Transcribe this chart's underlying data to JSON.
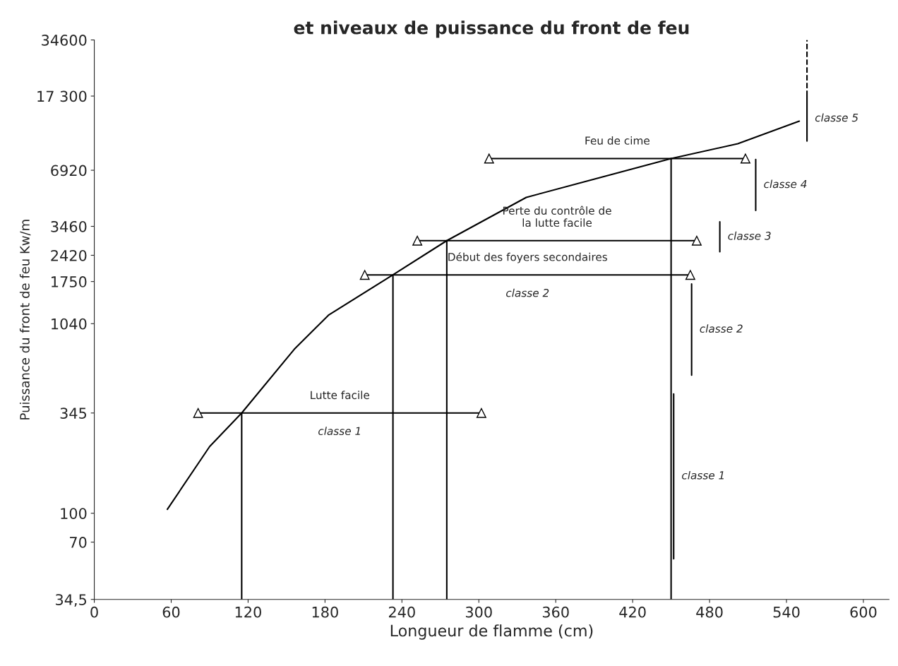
{
  "chart_data": {
    "type": "line",
    "title": "et niveaux de puissance du front de feu",
    "xlabel": "Longueur de flamme (cm)",
    "ylabel": "Puissance du front de feu Kw/m",
    "log": "y",
    "grid": false,
    "legend": false,
    "xlim": [
      0,
      620
    ],
    "xticks": [
      0,
      60,
      120,
      180,
      240,
      300,
      360,
      420,
      480,
      540,
      600
    ],
    "ylim": [
      34.5,
      34600
    ],
    "yticks": [
      {
        "value": 34.5,
        "label": "34,5"
      },
      70,
      100,
      345,
      1040,
      1750,
      2420,
      3460,
      6920,
      {
        "value": 17300,
        "label": "17 300"
      },
      34600
    ],
    "series": [
      {
        "color": "#000000",
        "x": [
          57,
          90,
          115,
          156,
          183,
          233,
          275,
          337,
          450,
          502,
          550
        ],
        "values": [
          105,
          228,
          345,
          758,
          1160,
          1900,
          2900,
          4950,
          8000,
          9600,
          12700
        ]
      },
      {
        "color": "#000000",
        "x": [
          81,
          302
        ],
        "values": [
          345,
          345
        ],
        "marker": "triangle"
      },
      {
        "color": "#000000",
        "x": [
          211,
          465
        ],
        "values": [
          1900,
          1900
        ],
        "marker": "triangle"
      },
      {
        "color": "#000000",
        "x": [
          252,
          470
        ],
        "values": [
          2900,
          2900
        ],
        "marker": "triangle"
      },
      {
        "color": "#000000",
        "x": [
          308,
          508
        ],
        "values": [
          8000,
          8000
        ],
        "marker": "triangle"
      },
      {
        "color": "#000000",
        "x": [
          115,
          115
        ],
        "values": [
          34.5,
          345
        ]
      },
      {
        "color": "#000000",
        "x": [
          233,
          233
        ],
        "values": [
          34.5,
          1900
        ]
      },
      {
        "color": "#000000",
        "x": [
          275,
          275
        ],
        "values": [
          34.5,
          2900
        ]
      },
      {
        "color": "#000000",
        "x": [
          450,
          450
        ],
        "values": [
          34.5,
          8000
        ]
      },
      {
        "color": "#000000",
        "x": [
          452,
          452
        ],
        "values": [
          57,
          437
        ]
      },
      {
        "color": "#000000",
        "x": [
          466,
          466
        ],
        "values": [
          550,
          1700
        ]
      },
      {
        "color": "#000000",
        "x": [
          488,
          488
        ],
        "values": [
          2530,
          3660
        ]
      },
      {
        "color": "#000000",
        "x": [
          516,
          516
        ],
        "values": [
          4210,
          7910
        ]
      },
      {
        "color": "#000000",
        "x": [
          556,
          556
        ],
        "values": [
          9930,
          17300
        ]
      },
      {
        "color": "#000000",
        "x": [
          556,
          556
        ],
        "values": [
          17300,
          34600
        ],
        "line_style": "dashed"
      }
    ],
    "annotations": [
      {
        "text": "Lutte facile",
        "x": 191.5,
        "y": 345
      },
      {
        "text": "classe 1",
        "x": 191.5,
        "y": 345
      },
      {
        "text": "Début des foyers secondaires",
        "x": 338,
        "y": 1900
      },
      {
        "text": "classe 2",
        "x": 338,
        "y": 1900
      },
      {
        "text": "Perte du contrôle de\nla lutte facile",
        "x": 361,
        "y": 2900
      },
      {
        "text": "Feu de cime",
        "x": 408,
        "y": 8000
      },
      {
        "text": "classe 1",
        "x": 452,
        "y": 158
      },
      {
        "text": "classe 2",
        "x": 466,
        "y": 967
      },
      {
        "text": "classe 3",
        "x": 488,
        "y": 3043
      },
      {
        "text": "classe 4",
        "x": 516,
        "y": 5771
      },
      {
        "text": "classe 5",
        "x": 556,
        "y": 13107
      }
    ]
  }
}
